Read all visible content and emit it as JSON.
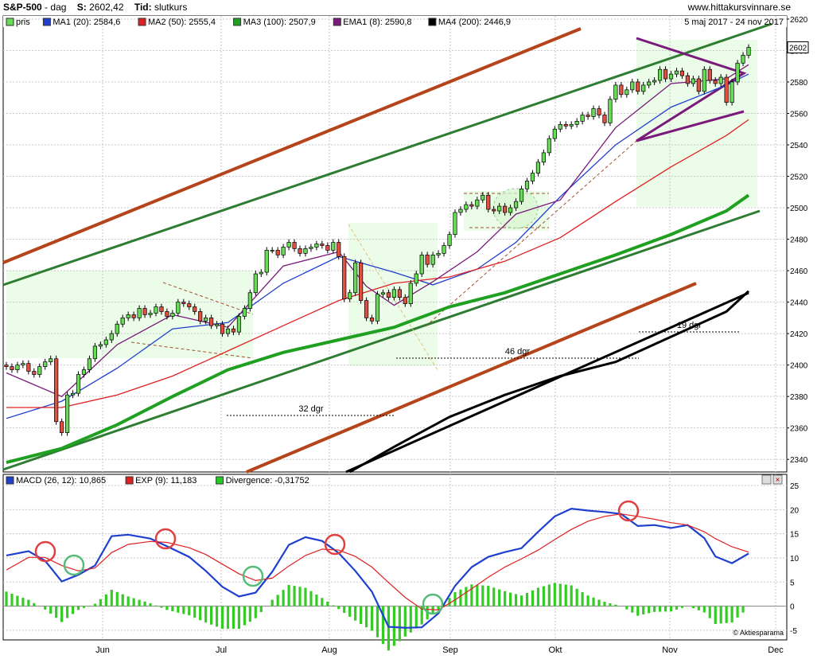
{
  "header": {
    "symbol": "S&P-500",
    "period": "dag",
    "last_label": "S:",
    "last_value": "2602,42",
    "type_label": "Tid:",
    "type_value": "slutkurs",
    "site": "www.hittakursvinnare.se",
    "date_range": "5 maj 2017 - 24 nov 2017"
  },
  "legend_top": [
    {
      "label": "pris",
      "color": "#66dd55"
    },
    {
      "label": "MA1 (20): 2584,6",
      "color": "#1f3fcf"
    },
    {
      "label": "MA2 (50): 2555,4",
      "color": "#e02020"
    },
    {
      "label": "MA3 (100): 2507,9",
      "color": "#20a020"
    },
    {
      "label": "EMA1 (8): 2590,8",
      "color": "#7a1a7a"
    },
    {
      "label": "MA4 (200): 2446,9",
      "color": "#000000"
    }
  ],
  "legend_bottom": [
    {
      "label": "MACD (26, 12): 10,865",
      "color": "#1f3fcf"
    },
    {
      "label": "EXP (9): 11,183",
      "color": "#e02020"
    },
    {
      "label": "Divergence: -0,31752",
      "color": "#22cc22"
    }
  ],
  "watermark": "© Aktiesparama",
  "price_tag": "2602",
  "annotations": [
    "32 dgr",
    "46 dgr",
    "19 dgr"
  ],
  "chart_data": [
    {
      "type": "line",
      "title": "S&P-500",
      "ylim": [
        2332,
        2622
      ],
      "y_ticks": [
        2340,
        2360,
        2380,
        2400,
        2420,
        2440,
        2460,
        2480,
        2500,
        2520,
        2540,
        2560,
        2580,
        2600,
        2620
      ],
      "x_ticks": [
        "Jun",
        "Jul",
        "Aug",
        "Sep",
        "Okt",
        "Nov",
        "Dec"
      ],
      "ohlc_close": [
        2399,
        2397,
        2400,
        2401,
        2396,
        2394,
        2399,
        2402,
        2404,
        2364,
        2357,
        2381,
        2382,
        2394,
        2397,
        2404,
        2412,
        2413,
        2416,
        2420,
        2426,
        2430,
        2432,
        2430,
        2436,
        2432,
        2433,
        2437,
        2434,
        2431,
        2433,
        2440,
        2439,
        2437,
        2434,
        2428,
        2430,
        2425,
        2426,
        2420,
        2423,
        2421,
        2431,
        2436,
        2446,
        2458,
        2459,
        2473,
        2473,
        2470,
        2475,
        2478,
        2474,
        2471,
        2474,
        2475,
        2477,
        2476,
        2473,
        2478,
        2469,
        2442,
        2446,
        2465,
        2441,
        2430,
        2428,
        2445,
        2446,
        2443,
        2448,
        2443,
        2439,
        2452,
        2458,
        2470,
        2464,
        2470,
        2471,
        2476,
        2483,
        2497,
        2499,
        2502,
        2501,
        2505,
        2508,
        2499,
        2498,
        2501,
        2497,
        2500,
        2504,
        2512,
        2517,
        2522,
        2529,
        2535,
        2544,
        2550,
        2553,
        2552,
        2553,
        2555,
        2559,
        2558,
        2563,
        2559,
        2554,
        2569,
        2578,
        2572,
        2575,
        2580,
        2574,
        2578,
        2580,
        2581,
        2588,
        2582,
        2585,
        2587,
        2584,
        2579,
        2582,
        2574,
        2588,
        2581,
        2579,
        2583,
        2567,
        2580,
        2592,
        2597,
        2602
      ],
      "series": [
        {
          "name": "MA1 (20)",
          "color": "#1f3fcf",
          "values": [
            [
              0,
              2366
            ],
            [
              10,
              2377
            ],
            [
              20,
              2398
            ],
            [
              30,
              2423
            ],
            [
              40,
              2427
            ],
            [
              50,
              2452
            ],
            [
              60,
              2469
            ],
            [
              70,
              2459
            ],
            [
              77,
              2451
            ],
            [
              85,
              2461
            ],
            [
              92,
              2478
            ],
            [
              100,
              2507
            ],
            [
              110,
              2540
            ],
            [
              120,
              2564
            ],
            [
              130,
              2578
            ],
            [
              134,
              2585
            ]
          ]
        },
        {
          "name": "MA2 (50)",
          "color": "#e02020",
          "values": [
            [
              0,
              2373
            ],
            [
              10,
              2373
            ],
            [
              20,
              2381
            ],
            [
              30,
              2393
            ],
            [
              40,
              2409
            ],
            [
              50,
              2425
            ],
            [
              60,
              2441
            ],
            [
              70,
              2452
            ],
            [
              80,
              2456
            ],
            [
              90,
              2466
            ],
            [
              100,
              2481
            ],
            [
              110,
              2504
            ],
            [
              120,
              2526
            ],
            [
              130,
              2546
            ],
            [
              134,
              2556
            ]
          ]
        },
        {
          "name": "MA3 (100)",
          "color": "#20a020",
          "values": [
            [
              0,
              2338
            ],
            [
              10,
              2347
            ],
            [
              20,
              2362
            ],
            [
              30,
              2380
            ],
            [
              40,
              2397
            ],
            [
              50,
              2408
            ],
            [
              60,
              2416
            ],
            [
              70,
              2424
            ],
            [
              80,
              2437
            ],
            [
              90,
              2446
            ],
            [
              100,
              2458
            ],
            [
              110,
              2470
            ],
            [
              120,
              2483
            ],
            [
              130,
              2498
            ],
            [
              134,
              2508
            ]
          ]
        },
        {
          "name": "EMA1 (8)",
          "color": "#7a1a7a",
          "values": [
            [
              0,
              2395
            ],
            [
              10,
              2380
            ],
            [
              20,
              2413
            ],
            [
              30,
              2432
            ],
            [
              40,
              2424
            ],
            [
              50,
              2463
            ],
            [
              60,
              2472
            ],
            [
              65,
              2450
            ],
            [
              70,
              2438
            ],
            [
              77,
              2453
            ],
            [
              85,
              2472
            ],
            [
              92,
              2496
            ],
            [
              100,
              2505
            ],
            [
              110,
              2551
            ],
            [
              120,
              2579
            ],
            [
              130,
              2582
            ],
            [
              134,
              2591
            ]
          ]
        },
        {
          "name": "MA4 (200)",
          "color": "#000000",
          "values": [
            [
              62,
              2332
            ],
            [
              70,
              2348
            ],
            [
              80,
              2367
            ],
            [
              90,
              2381
            ],
            [
              100,
              2393
            ],
            [
              110,
              2402
            ],
            [
              120,
              2418
            ],
            [
              130,
              2434
            ],
            [
              134,
              2447
            ]
          ]
        }
      ]
    },
    {
      "type": "line",
      "title": "MACD",
      "ylim": [
        -7,
        25
      ],
      "y_ticks": [
        -5,
        0,
        5,
        10,
        15,
        20,
        25
      ],
      "series": [
        {
          "name": "MACD (26, 12)",
          "color": "#1f3fcf",
          "values": [
            [
              0,
              10.5
            ],
            [
              4,
              11.4
            ],
            [
              7,
              9.4
            ],
            [
              10,
              5.1
            ],
            [
              13,
              6.5
            ],
            [
              16,
              8.4
            ],
            [
              19,
              14.5
            ],
            [
              22,
              14.8
            ],
            [
              26,
              14.0
            ],
            [
              29,
              12.4
            ],
            [
              33,
              10.2
            ],
            [
              36,
              7.3
            ],
            [
              39,
              4.0
            ],
            [
              42,
              2.0
            ],
            [
              45,
              2.8
            ],
            [
              48,
              7.1
            ],
            [
              51,
              12.7
            ],
            [
              54,
              14.3
            ],
            [
              57,
              13.5
            ],
            [
              60,
              11.0
            ],
            [
              63,
              7.3
            ],
            [
              66,
              3.0
            ],
            [
              69,
              -4.3
            ],
            [
              72,
              -4.5
            ],
            [
              75,
              -4.4
            ],
            [
              78,
              -1.5
            ],
            [
              81,
              4.2
            ],
            [
              84,
              8.1
            ],
            [
              87,
              10.2
            ],
            [
              90,
              11.2
            ],
            [
              93,
              12.0
            ],
            [
              96,
              15.4
            ],
            [
              99,
              18.6
            ],
            [
              102,
              20.2
            ],
            [
              105,
              19.8
            ],
            [
              108,
              19.5
            ],
            [
              111,
              19.1
            ],
            [
              114,
              16.6
            ],
            [
              117,
              16.8
            ],
            [
              120,
              16.2
            ],
            [
              123,
              16.8
            ],
            [
              126,
              14.1
            ],
            [
              128,
              10.3
            ],
            [
              131,
              8.9
            ],
            [
              134,
              10.9
            ]
          ]
        },
        {
          "name": "EXP (9)",
          "color": "#e02020",
          "values": [
            [
              0,
              7.5
            ],
            [
              4,
              10.1
            ],
            [
              7,
              10.1
            ],
            [
              10,
              8.4
            ],
            [
              13,
              7.3
            ],
            [
              16,
              7.9
            ],
            [
              19,
              11.1
            ],
            [
              22,
              12.8
            ],
            [
              26,
              13.4
            ],
            [
              29,
              13.2
            ],
            [
              33,
              12.1
            ],
            [
              36,
              10.7
            ],
            [
              39,
              8.7
            ],
            [
              42,
              6.7
            ],
            [
              45,
              5.3
            ],
            [
              48,
              5.8
            ],
            [
              51,
              8.3
            ],
            [
              54,
              10.5
            ],
            [
              57,
              11.8
            ],
            [
              60,
              11.6
            ],
            [
              63,
              10.3
            ],
            [
              66,
              8.1
            ],
            [
              69,
              4.9
            ],
            [
              72,
              1.8
            ],
            [
              75,
              -0.6
            ],
            [
              78,
              -0.8
            ],
            [
              81,
              1.3
            ],
            [
              84,
              3.6
            ],
            [
              87,
              6.0
            ],
            [
              90,
              8.1
            ],
            [
              93,
              9.8
            ],
            [
              96,
              11.6
            ],
            [
              99,
              13.8
            ],
            [
              102,
              15.9
            ],
            [
              105,
              17.6
            ],
            [
              108,
              18.6
            ],
            [
              111,
              19.1
            ],
            [
              114,
              18.6
            ],
            [
              117,
              18.0
            ],
            [
              120,
              17.3
            ],
            [
              123,
              16.8
            ],
            [
              126,
              15.4
            ],
            [
              128,
              14.0
            ],
            [
              131,
              12.3
            ],
            [
              134,
              11.2
            ]
          ]
        },
        {
          "name": "Divergence",
          "color": "#22cc22",
          "values": [
            [
              0,
              3.0
            ],
            [
              4,
              1.3
            ],
            [
              7,
              -0.7
            ],
            [
              10,
              -3.3
            ],
            [
              13,
              -0.8
            ],
            [
              16,
              0.5
            ],
            [
              19,
              3.4
            ],
            [
              22,
              2.0
            ],
            [
              26,
              0.6
            ],
            [
              29,
              -0.8
            ],
            [
              33,
              -1.9
            ],
            [
              36,
              -3.4
            ],
            [
              39,
              -4.7
            ],
            [
              42,
              -4.7
            ],
            [
              45,
              -2.5
            ],
            [
              48,
              1.3
            ],
            [
              51,
              4.4
            ],
            [
              54,
              3.8
            ],
            [
              57,
              1.7
            ],
            [
              60,
              -0.6
            ],
            [
              63,
              -3.0
            ],
            [
              66,
              -5.1
            ],
            [
              69,
              -9.2
            ],
            [
              72,
              -6.3
            ],
            [
              75,
              -3.8
            ],
            [
              78,
              -0.7
            ],
            [
              81,
              2.9
            ],
            [
              84,
              4.5
            ],
            [
              87,
              4.2
            ],
            [
              90,
              3.1
            ],
            [
              93,
              2.2
            ],
            [
              96,
              3.8
            ],
            [
              99,
              4.8
            ],
            [
              102,
              4.3
            ],
            [
              105,
              2.2
            ],
            [
              108,
              0.9
            ],
            [
              111,
              0.0
            ],
            [
              114,
              -2.0
            ],
            [
              117,
              -1.2
            ],
            [
              120,
              -1.1
            ],
            [
              123,
              0.0
            ],
            [
              126,
              -1.3
            ],
            [
              128,
              -3.7
            ],
            [
              131,
              -3.4
            ],
            [
              134,
              -0.3
            ]
          ]
        }
      ]
    }
  ]
}
